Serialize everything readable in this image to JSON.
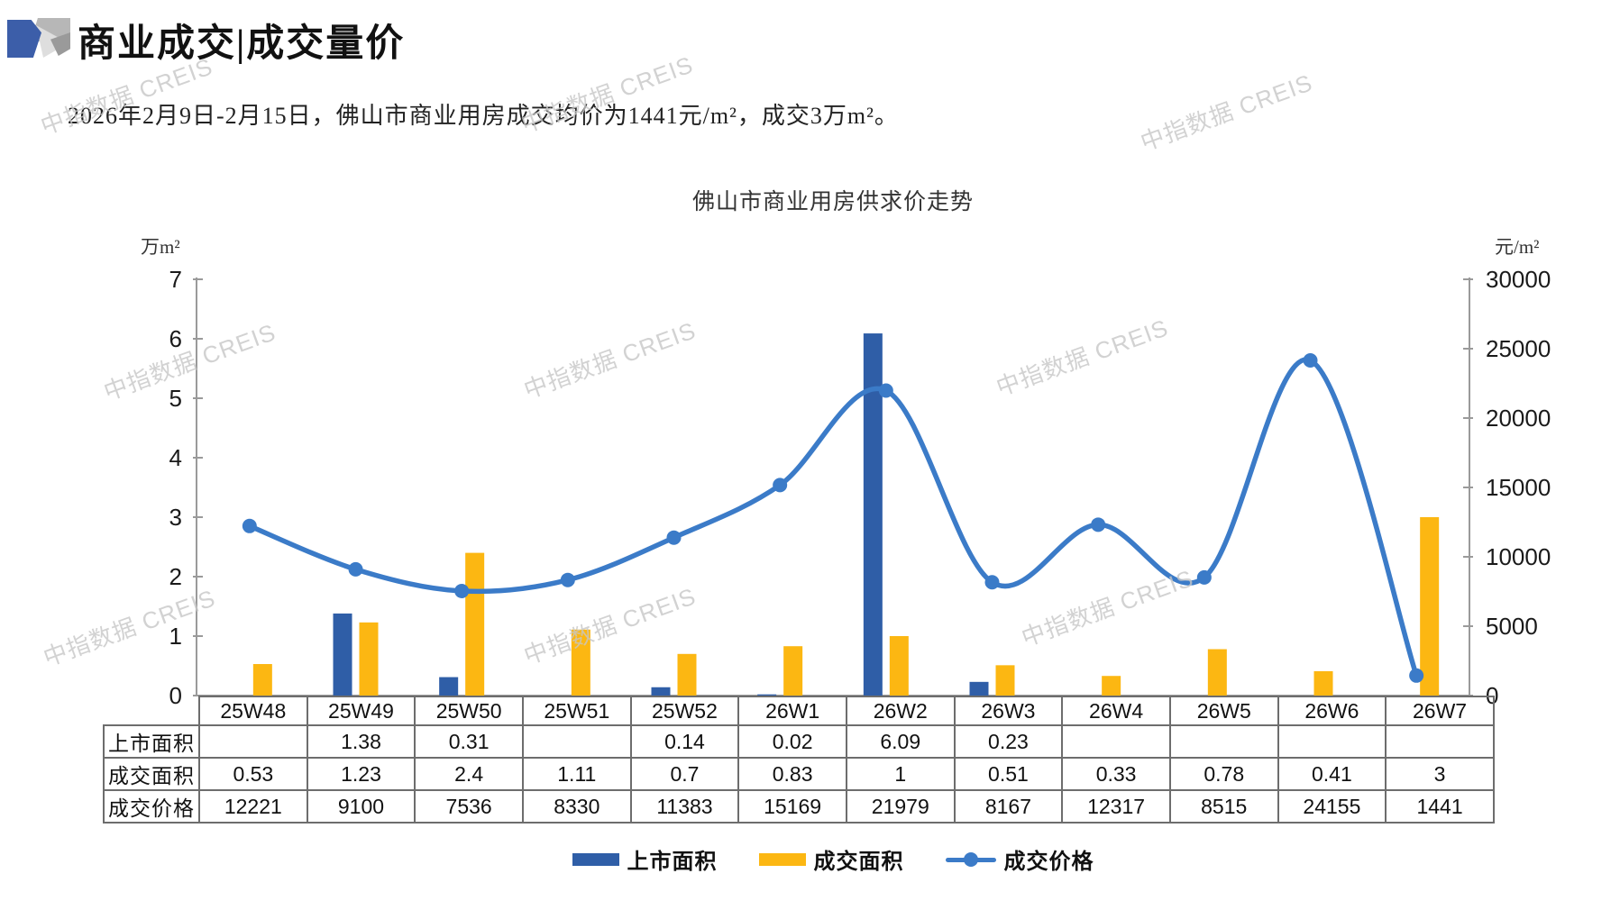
{
  "header": {
    "title": "商业成交|成交量价",
    "subtitle": "2026年2月9日-2月15日，佛山市商业用房成交均价为1441元/m²，成交3万m²。"
  },
  "watermark": {
    "text": "中指数据 CREIS"
  },
  "chart_data": {
    "type": "bar+line",
    "title": "佛山市商业用房供求价走势",
    "categories": [
      "25W48",
      "25W49",
      "25W50",
      "25W51",
      "25W52",
      "26W1",
      "26W2",
      "26W3",
      "26W4",
      "26W5",
      "26W6",
      "26W7"
    ],
    "series": [
      {
        "name": "上市面积",
        "type": "bar",
        "axis": "left",
        "color": "#2f5ea7",
        "values": [
          null,
          1.38,
          0.31,
          null,
          0.14,
          0.02,
          6.09,
          0.23,
          null,
          null,
          null,
          null
        ]
      },
      {
        "name": "成交面积",
        "type": "bar",
        "axis": "left",
        "color": "#fcb712",
        "values": [
          0.53,
          1.23,
          2.4,
          1.11,
          0.7,
          0.83,
          1,
          0.51,
          0.33,
          0.78,
          0.41,
          3
        ]
      },
      {
        "name": "成交价格",
        "type": "line",
        "axis": "right",
        "color": "#3b7bc8",
        "values": [
          12221,
          9100,
          7536,
          8330,
          11383,
          15169,
          21979,
          8167,
          12317,
          8515,
          24155,
          1441
        ]
      }
    ],
    "left_axis": {
      "label": "万m²",
      "min": 0,
      "max": 7,
      "step": 1,
      "ticks": [
        "0",
        "1",
        "2",
        "3",
        "4",
        "5",
        "6",
        "7"
      ]
    },
    "right_axis": {
      "label": "元/m²",
      "min": 0,
      "max": 30000,
      "step": 5000,
      "ticks": [
        "0",
        "5000",
        "10000",
        "15000",
        "20000",
        "25000",
        "30000"
      ]
    },
    "grid": false,
    "legend_position": "bottom",
    "legend": [
      "上市面积",
      "成交面积",
      "成交价格"
    ]
  },
  "table": {
    "row_labels": [
      "上市面积",
      "成交面积",
      "成交价格"
    ],
    "rows": [
      [
        "",
        "1.38",
        "0.31",
        "",
        "0.14",
        "0.02",
        "6.09",
        "0.23",
        "",
        "",
        "",
        ""
      ],
      [
        "0.53",
        "1.23",
        "2.4",
        "1.11",
        "0.7",
        "0.83",
        "1",
        "0.51",
        "0.33",
        "0.78",
        "0.41",
        "3"
      ],
      [
        "12221",
        "9100",
        "7536",
        "8330",
        "11383",
        "15169",
        "21979",
        "8167",
        "12317",
        "8515",
        "24155",
        "1441"
      ]
    ]
  }
}
